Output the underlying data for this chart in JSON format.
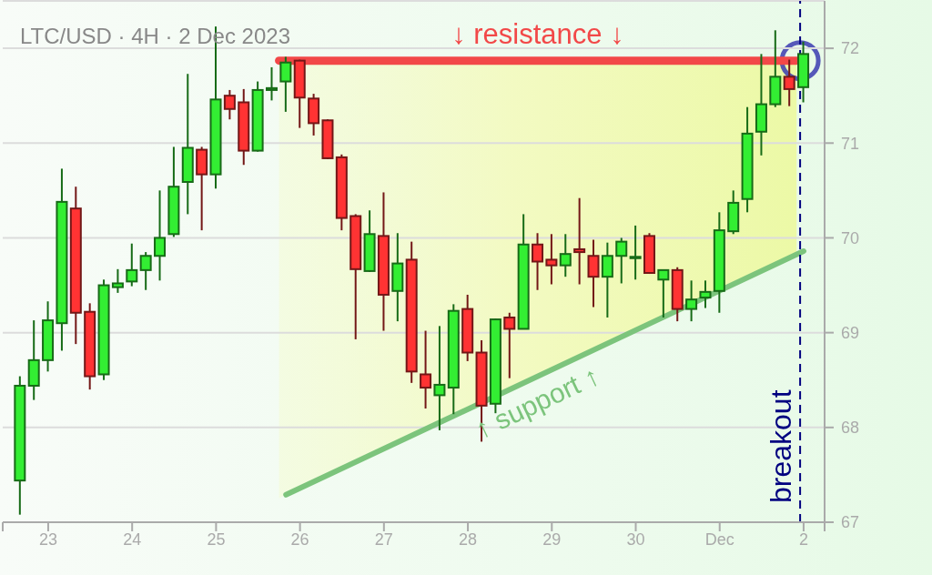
{
  "chart_data": {
    "type": "candlestick",
    "title": "LTC/USD · 4H · 2 Dec 2023",
    "x": [
      "2023-11-22T16:00",
      "2023-11-22T20:00",
      "2023-11-23T00:00",
      "2023-11-23T04:00",
      "2023-11-23T08:00",
      "2023-11-23T12:00",
      "2023-11-23T16:00",
      "2023-11-23T20:00",
      "2023-11-24T00:00",
      "2023-11-24T04:00",
      "2023-11-24T08:00",
      "2023-11-24T12:00",
      "2023-11-24T16:00",
      "2023-11-24T20:00",
      "2023-11-25T00:00",
      "2023-11-25T04:00",
      "2023-11-25T08:00",
      "2023-11-25T12:00",
      "2023-11-25T16:00",
      "2023-11-25T20:00",
      "2023-11-26T00:00",
      "2023-11-26T04:00",
      "2023-11-26T08:00",
      "2023-11-26T12:00",
      "2023-11-26T16:00",
      "2023-11-26T20:00",
      "2023-11-27T00:00",
      "2023-11-27T04:00",
      "2023-11-27T08:00",
      "2023-11-27T12:00",
      "2023-11-27T16:00",
      "2023-11-27T20:00",
      "2023-11-28T00:00",
      "2023-11-28T04:00",
      "2023-11-28T08:00",
      "2023-11-28T12:00",
      "2023-11-28T16:00",
      "2023-11-28T20:00",
      "2023-11-29T00:00",
      "2023-11-29T04:00",
      "2023-11-29T08:00",
      "2023-11-29T12:00",
      "2023-11-29T16:00",
      "2023-11-29T20:00",
      "2023-11-30T00:00",
      "2023-11-30T04:00",
      "2023-11-30T08:00",
      "2023-11-30T12:00",
      "2023-11-30T16:00",
      "2023-11-30T20:00",
      "2023-12-01T00:00",
      "2023-12-01T04:00",
      "2023-12-01T08:00",
      "2023-12-01T12:00",
      "2023-12-01T16:00",
      "2023-12-01T20:00",
      "2023-12-02T00:00"
    ],
    "ohlc": [
      [
        67.44,
        68.54,
        67.08,
        68.44
      ],
      [
        68.44,
        69.13,
        68.29,
        68.71
      ],
      [
        68.71,
        69.33,
        68.59,
        69.13
      ],
      [
        69.1,
        70.73,
        68.81,
        70.38
      ],
      [
        70.31,
        70.54,
        68.88,
        69.21
      ],
      [
        69.22,
        69.31,
        68.4,
        68.54
      ],
      [
        68.56,
        69.56,
        68.5,
        69.5
      ],
      [
        69.48,
        69.67,
        69.42,
        69.52
      ],
      [
        69.54,
        69.94,
        69.49,
        69.66
      ],
      [
        69.66,
        69.85,
        69.45,
        69.81
      ],
      [
        69.81,
        70.5,
        69.55,
        70.0
      ],
      [
        70.04,
        70.96,
        70.01,
        70.54
      ],
      [
        70.59,
        71.73,
        70.25,
        70.95
      ],
      [
        70.93,
        70.96,
        70.08,
        70.67
      ],
      [
        70.67,
        72.23,
        70.52,
        71.46
      ],
      [
        71.5,
        71.56,
        71.25,
        71.36
      ],
      [
        71.43,
        71.57,
        70.77,
        70.92
      ],
      [
        70.92,
        71.65,
        70.91,
        71.56
      ],
      [
        71.56,
        71.8,
        71.45,
        71.58
      ],
      [
        71.65,
        71.91,
        71.33,
        71.85
      ],
      [
        71.87,
        71.88,
        71.16,
        71.48
      ],
      [
        71.47,
        71.52,
        71.08,
        71.21
      ],
      [
        71.24,
        71.25,
        70.83,
        70.84
      ],
      [
        70.85,
        70.88,
        70.08,
        70.21
      ],
      [
        70.23,
        70.25,
        68.93,
        69.67
      ],
      [
        69.65,
        70.29,
        69.64,
        70.04
      ],
      [
        70.02,
        70.48,
        69.02,
        69.4
      ],
      [
        69.44,
        70.05,
        69.12,
        69.73
      ],
      [
        69.77,
        69.96,
        68.47,
        68.59
      ],
      [
        68.56,
        69.02,
        68.2,
        68.42
      ],
      [
        68.34,
        69.07,
        67.97,
        68.45
      ],
      [
        68.42,
        69.3,
        68.14,
        69.23
      ],
      [
        69.25,
        69.4,
        68.7,
        68.79
      ],
      [
        68.79,
        68.92,
        67.85,
        68.23
      ],
      [
        68.25,
        69.15,
        68.15,
        69.14
      ],
      [
        69.16,
        69.21,
        68.52,
        69.04
      ],
      [
        69.04,
        70.25,
        69.04,
        69.93
      ],
      [
        69.93,
        70.05,
        69.45,
        69.75
      ],
      [
        69.77,
        70.04,
        69.51,
        69.71
      ],
      [
        69.71,
        70.04,
        69.59,
        69.83
      ],
      [
        69.88,
        70.42,
        69.51,
        69.85
      ],
      [
        69.81,
        69.98,
        69.27,
        69.59
      ],
      [
        69.59,
        69.95,
        69.16,
        69.81
      ],
      [
        69.81,
        70.0,
        69.52,
        69.96
      ],
      [
        69.8,
        70.13,
        69.56,
        69.8
      ],
      [
        70.02,
        70.05,
        69.62,
        69.63
      ],
      [
        69.56,
        69.66,
        69.16,
        69.66
      ],
      [
        69.66,
        69.69,
        69.12,
        69.25
      ],
      [
        69.25,
        69.55,
        69.12,
        69.35
      ],
      [
        69.37,
        69.55,
        69.26,
        69.43
      ],
      [
        69.44,
        70.27,
        69.21,
        70.08
      ],
      [
        70.07,
        70.5,
        70.04,
        70.37
      ],
      [
        70.41,
        71.38,
        70.27,
        71.1
      ],
      [
        71.12,
        71.94,
        70.87,
        71.41
      ],
      [
        71.41,
        72.19,
        71.38,
        71.7
      ],
      [
        71.7,
        71.88,
        71.39,
        71.57
      ],
      [
        71.59,
        72.07,
        71.43,
        71.94
      ]
    ],
    "colors": [
      "#33ee33",
      "#33ee33",
      "#33ee33",
      "#33ee33",
      "#ff3333",
      "#ff3333",
      "#33ee33",
      "#33ee33",
      "#33ee33",
      "#33ee33",
      "#33ee33",
      "#33ee33",
      "#33ee33",
      "#ff3333",
      "#33ee33",
      "#ff3333",
      "#ff3333",
      "#33ee33",
      "#33ee33",
      "#33ee33",
      "#ff3333",
      "#ff3333",
      "#ff3333",
      "#ff3333",
      "#ff3333",
      "#33ee33",
      "#ff3333",
      "#33ee33",
      "#ff3333",
      "#ff3333",
      "#33ee33",
      "#33ee33",
      "#ff3333",
      "#ff3333",
      "#33ee33",
      "#ff3333",
      "#33ee33",
      "#ff3333",
      "#ff3333",
      "#33ee33",
      "#ff3333",
      "#ff3333",
      "#33ee33",
      "#33ee33",
      "#33ee33",
      "#ff3333",
      "#33ee33",
      "#ff3333",
      "#33ee33",
      "#33ee33",
      "#33ee33",
      "#33ee33",
      "#33ee33",
      "#33ee33",
      "#33ee33",
      "#ff3333",
      "#33ee33"
    ],
    "series": [
      {
        "type": "line",
        "name": "↓ resistance ↓",
        "color": "#f24848",
        "x": [
          "2023-11-25T18:00",
          "2023-12-01T22:00"
        ],
        "values": [
          71.87,
          71.87
        ]
      },
      {
        "type": "line",
        "name": "↑ support ↑",
        "color": "#7cc47c",
        "x": [
          "2023-11-25T20:00",
          "2023-12-02T00:00"
        ],
        "values": [
          67.29,
          69.86
        ]
      }
    ],
    "ref_lines": [
      {
        "axis": "x",
        "value": "2023-12-01T23:00",
        "label": "breakout",
        "color": "#000080",
        "line_style": "dashed"
      }
    ],
    "xlim": [
      "2023-11-22T11:00",
      "2023-12-02T06:00"
    ],
    "xticks": [
      {
        "value": "2023-11-22T11:00",
        "label": null
      },
      {
        "value": "2023-11-23",
        "label": "23"
      },
      {
        "value": "2023-11-24",
        "label": "24"
      },
      {
        "value": "2023-11-25",
        "label": "25"
      },
      {
        "value": "2023-11-26",
        "label": "26"
      },
      {
        "value": "2023-11-27",
        "label": "27"
      },
      {
        "value": "2023-11-28",
        "label": "28"
      },
      {
        "value": "2023-11-29",
        "label": "29"
      },
      {
        "value": "2023-11-30",
        "label": "30"
      },
      {
        "value": "2023-12-01",
        "label": "Dec"
      },
      {
        "value": "2023-12-02",
        "label": "2"
      },
      {
        "value": "2023-12-02T06:00",
        "label": null
      }
    ],
    "ylim": [
      67,
      72.5
    ],
    "yticks": [
      67,
      68,
      69,
      70,
      71,
      72
    ],
    "grid": "y"
  }
}
